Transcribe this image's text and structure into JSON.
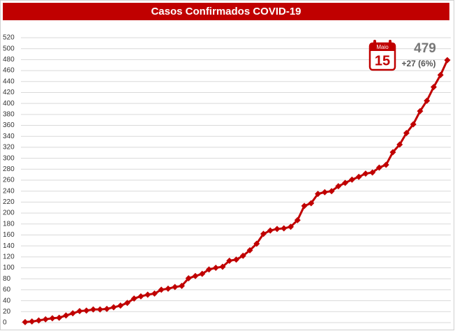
{
  "chart_data": {
    "type": "line",
    "title": "Casos Confirmados COVID-19",
    "categories": [
      null,
      null,
      null,
      null,
      null,
      null,
      null,
      null,
      null,
      null,
      null,
      null,
      null,
      null,
      null,
      null,
      null,
      null,
      null,
      null,
      null,
      null,
      null,
      null,
      null,
      null,
      null,
      null,
      null,
      null,
      null,
      null,
      null,
      null,
      null,
      null,
      null,
      null,
      null,
      null,
      null,
      null,
      null,
      null,
      null,
      null,
      null,
      null,
      null,
      null,
      null,
      null,
      null,
      null,
      null,
      null,
      null,
      null,
      null,
      null,
      null,
      null,
      null
    ],
    "values": [
      1,
      2,
      4,
      6,
      8,
      9,
      13,
      17,
      21,
      22,
      24,
      24,
      25,
      28,
      31,
      36,
      44,
      48,
      51,
      53,
      60,
      62,
      65,
      67,
      81,
      85,
      89,
      97,
      100,
      102,
      113,
      115,
      122,
      132,
      144,
      162,
      168,
      171,
      172,
      175,
      187,
      213,
      218,
      235,
      238,
      240,
      249,
      255,
      261,
      266,
      272,
      274,
      283,
      288,
      311,
      325,
      346,
      362,
      386,
      405,
      430,
      452,
      479
    ],
    "color": "#c00000",
    "ylim": [
      0,
      520
    ],
    "yticks": [
      0,
      20,
      40,
      60,
      80,
      100,
      120,
      140,
      160,
      180,
      200,
      220,
      240,
      260,
      280,
      300,
      320,
      340,
      360,
      380,
      400,
      420,
      440,
      460,
      480,
      500,
      520
    ],
    "grid": true,
    "annotation": {
      "month": "Maio",
      "day": "15",
      "total": "479",
      "change": "+27 (6%)"
    }
  }
}
